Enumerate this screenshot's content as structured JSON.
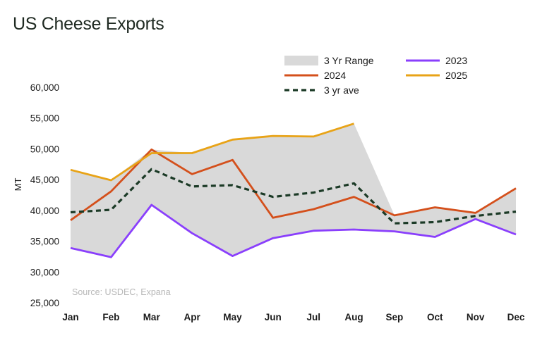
{
  "title": "US Cheese Exports",
  "chart_data": {
    "type": "line",
    "title": "US Cheese Exports",
    "xlabel": "",
    "ylabel": "MT",
    "ylim": [
      25000,
      60000
    ],
    "yticks": [
      25000,
      30000,
      35000,
      40000,
      45000,
      50000,
      55000,
      60000
    ],
    "ytick_labels": [
      "25,000",
      "30,000",
      "35,000",
      "40,000",
      "45,000",
      "50,000",
      "55,000",
      "60,000"
    ],
    "categories": [
      "Jan",
      "Feb",
      "Mar",
      "Apr",
      "May",
      "Jun",
      "Jul",
      "Aug",
      "Sep",
      "Oct",
      "Nov",
      "Dec"
    ],
    "range": {
      "name": "3 Yr Range",
      "color": "#d9d9d9",
      "low": [
        33900,
        32400,
        40900,
        36300,
        32600,
        35500,
        36700,
        36900,
        36600,
        35700,
        38600,
        36100
      ],
      "high": [
        46600,
        44900,
        49900,
        49300,
        51500,
        52100,
        52000,
        54100,
        39200,
        40500,
        39600,
        43600
      ]
    },
    "series": [
      {
        "name": "2023",
        "color": "#8a3ffc",
        "dash": false,
        "values": [
          33900,
          32400,
          40900,
          36300,
          32600,
          35500,
          36700,
          36900,
          36600,
          35700,
          38600,
          36100
        ]
      },
      {
        "name": "2024",
        "color": "#d4501c",
        "dash": false,
        "values": [
          38400,
          43100,
          49900,
          45900,
          48200,
          38800,
          40200,
          42200,
          39200,
          40500,
          39600,
          43600
        ]
      },
      {
        "name": "2025",
        "color": "#e8a317",
        "dash": false,
        "values": [
          46600,
          44900,
          49300,
          49300,
          51500,
          52100,
          52000,
          54100,
          null,
          null,
          null,
          null
        ]
      },
      {
        "name": "3 yr ave",
        "color": "#1b3a26",
        "dash": true,
        "values": [
          39700,
          40100,
          46700,
          43900,
          44100,
          42200,
          42900,
          44400,
          37900,
          38100,
          39100,
          39800
        ]
      }
    ],
    "legend": {
      "placement": "top",
      "entries": [
        "3 Yr Range",
        "2023",
        "2024",
        "2025",
        "3 yr ave"
      ]
    },
    "source": "Source: USDEC, Expana",
    "grid": false
  }
}
